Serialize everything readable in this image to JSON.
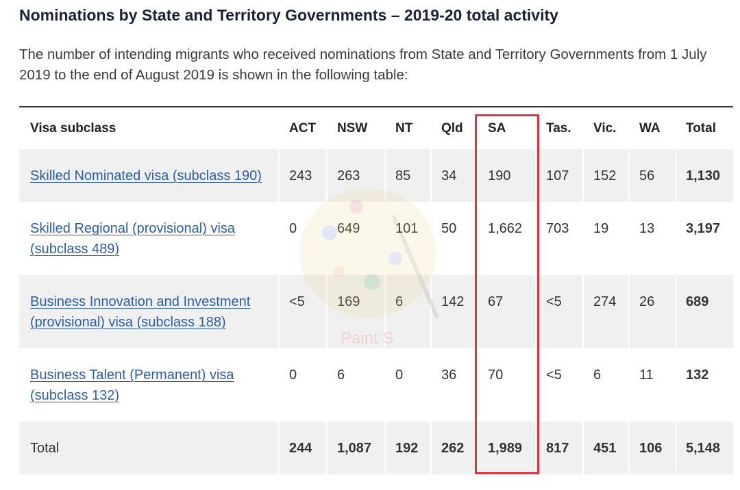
{
  "page": {
    "title": "Nominations by State and Territory Governments – 2019-20 total activity",
    "intro": "The number of intending migrants who received nominations from State and Territory Governments from 1 July 2019 to the end of August 2019 is shown in the following table:"
  },
  "table": {
    "headers": [
      "Visa subclass",
      "ACT",
      "NSW",
      "NT",
      "Qld",
      "SA",
      "Tas.",
      "Vic.",
      "WA",
      "Total"
    ],
    "rows": [
      {
        "visa": "Skilled Nominated visa (subclass 190)",
        "values": [
          "243",
          "263",
          "85",
          "34",
          "190",
          "107",
          "152",
          "56"
        ],
        "total": "1,130"
      },
      {
        "visa": "Skilled Regional (provisional) visa (subclass 489)",
        "values": [
          "0",
          "649",
          "101",
          "50",
          "1,662",
          "703",
          "19",
          "13"
        ],
        "total": "3,197"
      },
      {
        "visa": "Business Innovation and Investment (provisional) visa (subclass 188)",
        "values": [
          "<5",
          "169",
          "6",
          "142",
          "67",
          "<5",
          "274",
          "26"
        ],
        "total": "689"
      },
      {
        "visa": "Business Talent (Permanent) visa (subclass 132)",
        "values": [
          "0",
          "6",
          "0",
          "36",
          "70",
          "<5",
          "6",
          "11"
        ],
        "total": "132"
      }
    ],
    "total_row": {
      "label": "Total",
      "values": [
        "244",
        "1,087",
        "192",
        "262",
        "1,989",
        "817",
        "451",
        "106"
      ],
      "total": "5,148"
    }
  },
  "watermark": {
    "icon": "palette-icon",
    "text": "Paint S"
  },
  "colors": {
    "title": "#1c2033",
    "text": "#333333",
    "link": "#2b5ea8",
    "stripe": "#f0f0f0",
    "rule": "#333333",
    "highlight": "#dd3340"
  }
}
